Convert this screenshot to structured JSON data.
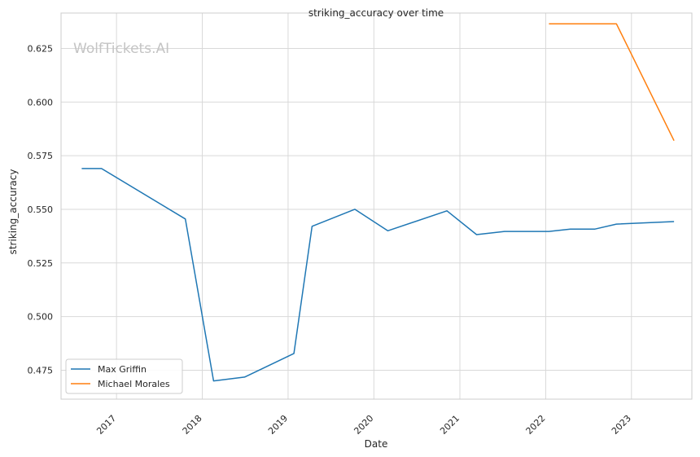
{
  "chart_data": {
    "type": "line",
    "title": "striking_accuracy over time",
    "xlabel": "Date",
    "ylabel": "striking_accuracy",
    "watermark": "WolfTickets.AI",
    "x_ticks": [
      "2017",
      "2018",
      "2019",
      "2020",
      "2021",
      "2022",
      "2023"
    ],
    "y_ticks": [
      "0.475",
      "0.500",
      "0.525",
      "0.550",
      "0.575",
      "0.600",
      "0.625"
    ],
    "xlim": [
      "2016-05-10",
      "2023-09-15"
    ],
    "ylim": [
      0.4615,
      0.6415
    ],
    "grid": true,
    "legend_position": "lower-left",
    "series": [
      {
        "name": "Max Griffin",
        "color": "#1f77b4",
        "points": [
          {
            "x": "2016-08-06",
            "y": 0.569
          },
          {
            "x": "2016-10-29",
            "y": 0.569
          },
          {
            "x": "2017-10-21",
            "y": 0.5455
          },
          {
            "x": "2018-02-18",
            "y": 0.47
          },
          {
            "x": "2018-06-30",
            "y": 0.4718
          },
          {
            "x": "2019-01-26",
            "y": 0.4828
          },
          {
            "x": "2019-04-13",
            "y": 0.5421
          },
          {
            "x": "2019-10-12",
            "y": 0.55
          },
          {
            "x": "2020-02-29",
            "y": 0.54
          },
          {
            "x": "2020-11-07",
            "y": 0.5493
          },
          {
            "x": "2021-03-13",
            "y": 0.5382
          },
          {
            "x": "2021-07-10",
            "y": 0.5397
          },
          {
            "x": "2022-01-15",
            "y": 0.5397
          },
          {
            "x": "2022-04-16",
            "y": 0.5408
          },
          {
            "x": "2022-07-30",
            "y": 0.5408
          },
          {
            "x": "2022-10-29",
            "y": 0.5431
          },
          {
            "x": "2023-07-01",
            "y": 0.5443
          }
        ]
      },
      {
        "name": "Michael Morales",
        "color": "#ff7f0e",
        "points": [
          {
            "x": "2022-01-15",
            "y": 0.6365
          },
          {
            "x": "2022-10-29",
            "y": 0.6365
          },
          {
            "x": "2023-07-01",
            "y": 0.582
          }
        ]
      }
    ]
  },
  "style": {
    "grid_color": "#d9d9d9",
    "axes_color": "#cccccc",
    "text_color": "#262626"
  }
}
